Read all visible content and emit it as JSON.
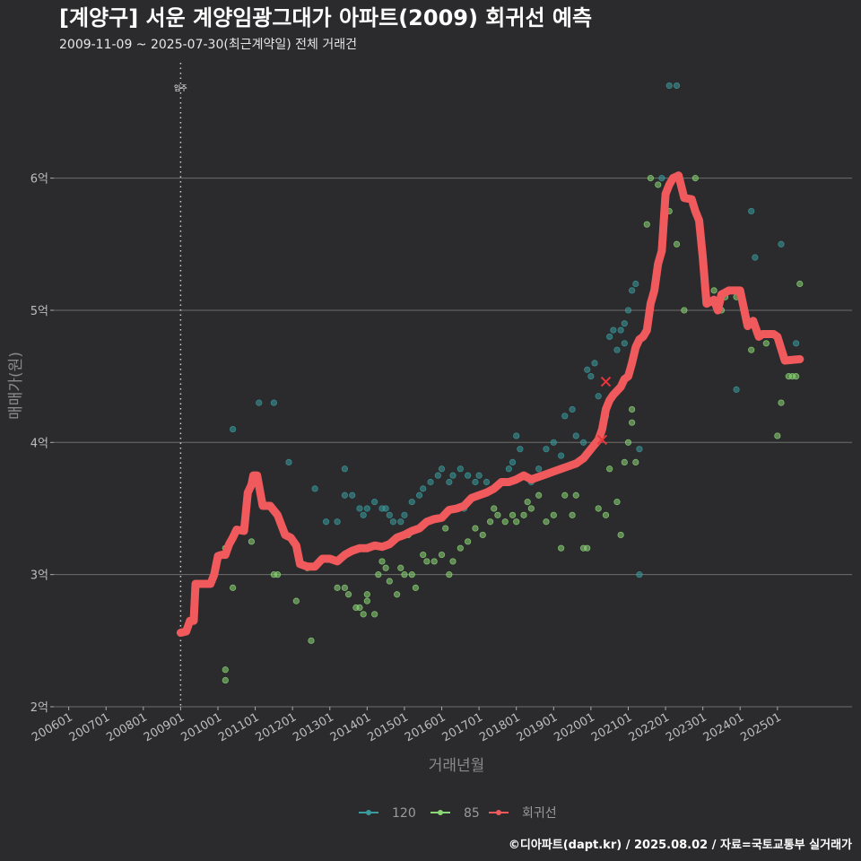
{
  "header": {
    "title": "[계양구] 서운 계양임광그대가 아파트(2009) 회귀선 예측",
    "subtitle": "2009-11-09 ~ 2025-07-30(최근계약일) 전체 거래건"
  },
  "caption": "©디아파트(dapt.kr) / 2025.08.02 / 자료=국토교통부 실거래가",
  "colors": {
    "s120": "#3a9a9c",
    "s85": "#8bd675",
    "reg": "#f05a5d",
    "grid": "#6e6e6e"
  },
  "chart_data": {
    "type": "scatter",
    "title": "[계양구] 서운 계양임광그대가 아파트(2009) 회귀선 예측",
    "xlabel": "거래년월",
    "ylabel": "매매가(원)",
    "xlim": [
      2005.6,
      2027.0
    ],
    "ylim": [
      2.0,
      6.9
    ],
    "x_ticks": [
      {
        "v": 2006.0,
        "label": "200601"
      },
      {
        "v": 2007.0,
        "label": "200701"
      },
      {
        "v": 2008.0,
        "label": "200801"
      },
      {
        "v": 2009.0,
        "label": "200901"
      },
      {
        "v": 2010.0,
        "label": "201001"
      },
      {
        "v": 2011.0,
        "label": "201101"
      },
      {
        "v": 2012.0,
        "label": "201201"
      },
      {
        "v": 2013.0,
        "label": "201301"
      },
      {
        "v": 2014.0,
        "label": "201401"
      },
      {
        "v": 2015.0,
        "label": "201501"
      },
      {
        "v": 2016.0,
        "label": "201601"
      },
      {
        "v": 2017.0,
        "label": "201701"
      },
      {
        "v": 2018.0,
        "label": "201801"
      },
      {
        "v": 2019.0,
        "label": "201901"
      },
      {
        "v": 2020.0,
        "label": "202001"
      },
      {
        "v": 2021.0,
        "label": "202101"
      },
      {
        "v": 2022.0,
        "label": "202201"
      },
      {
        "v": 2023.0,
        "label": "202301"
      },
      {
        "v": 2024.0,
        "label": "202401"
      },
      {
        "v": 2025.0,
        "label": "202501"
      }
    ],
    "y_ticks": [
      {
        "v": 2,
        "label": "2억"
      },
      {
        "v": 3,
        "label": "3억"
      },
      {
        "v": 4,
        "label": "4억"
      },
      {
        "v": 5,
        "label": "5억"
      },
      {
        "v": 6,
        "label": "6억"
      }
    ],
    "vline": {
      "x": 2009.0,
      "label": "입주"
    },
    "legend": [
      {
        "name": "120",
        "key": "s120"
      },
      {
        "name": "85",
        "key": "s85"
      },
      {
        "name": "회귀선",
        "key": "reg"
      }
    ],
    "series": [
      {
        "name": "120",
        "key": "s120",
        "points": [
          [
            2011.1,
            4.3
          ],
          [
            2011.5,
            4.3
          ],
          [
            2010.4,
            4.1
          ],
          [
            2011.9,
            3.85
          ],
          [
            2012.6,
            3.65
          ],
          [
            2013.4,
            3.8
          ],
          [
            2013.4,
            3.6
          ],
          [
            2013.6,
            3.6
          ],
          [
            2013.8,
            3.5
          ],
          [
            2013.9,
            3.45
          ],
          [
            2014.0,
            3.5
          ],
          [
            2014.2,
            3.55
          ],
          [
            2014.4,
            3.5
          ],
          [
            2014.5,
            3.5
          ],
          [
            2014.6,
            3.45
          ],
          [
            2014.7,
            3.4
          ],
          [
            2014.9,
            3.4
          ],
          [
            2015.0,
            3.45
          ],
          [
            2015.2,
            3.55
          ],
          [
            2015.4,
            3.6
          ],
          [
            2015.5,
            3.65
          ],
          [
            2015.7,
            3.7
          ],
          [
            2015.9,
            3.75
          ],
          [
            2016.0,
            3.8
          ],
          [
            2016.2,
            3.7
          ],
          [
            2016.3,
            3.75
          ],
          [
            2016.5,
            3.8
          ],
          [
            2016.7,
            3.75
          ],
          [
            2016.9,
            3.7
          ],
          [
            2017.0,
            3.75
          ],
          [
            2017.2,
            3.7
          ],
          [
            2017.4,
            3.65
          ],
          [
            2017.6,
            3.7
          ],
          [
            2017.8,
            3.8
          ],
          [
            2018.0,
            4.05
          ],
          [
            2018.2,
            3.75
          ],
          [
            2018.4,
            3.7
          ],
          [
            2018.6,
            3.8
          ],
          [
            2018.8,
            3.95
          ],
          [
            2019.0,
            4.0
          ],
          [
            2019.2,
            3.9
          ],
          [
            2019.3,
            4.2
          ],
          [
            2019.5,
            4.25
          ],
          [
            2019.6,
            4.05
          ],
          [
            2019.8,
            4.0
          ],
          [
            2020.0,
            4.5
          ],
          [
            2020.1,
            4.6
          ],
          [
            2020.2,
            4.35
          ],
          [
            2020.4,
            4.2
          ],
          [
            2020.5,
            4.8
          ],
          [
            2020.6,
            4.85
          ],
          [
            2020.8,
            4.85
          ],
          [
            2020.9,
            4.9
          ],
          [
            2021.0,
            5.0
          ],
          [
            2021.1,
            5.15
          ],
          [
            2021.2,
            5.2
          ],
          [
            2021.3,
            3.0
          ],
          [
            2021.3,
            3.95
          ],
          [
            2022.1,
            6.7
          ],
          [
            2022.3,
            6.7
          ],
          [
            2021.9,
            6.0
          ],
          [
            2023.9,
            4.4
          ],
          [
            2024.3,
            5.75
          ],
          [
            2024.4,
            5.4
          ],
          [
            2025.1,
            5.5
          ],
          [
            2025.5,
            4.75
          ],
          [
            2020.9,
            4.75
          ],
          [
            2019.9,
            4.55
          ],
          [
            2012.9,
            3.4
          ],
          [
            2013.2,
            3.4
          ],
          [
            2018.1,
            3.95
          ],
          [
            2017.9,
            3.85
          ],
          [
            2016.6,
            3.5
          ],
          [
            2020.7,
            4.7
          ]
        ]
      },
      {
        "name": "85",
        "key": "s85",
        "points": [
          [
            2010.2,
            2.28
          ],
          [
            2010.2,
            2.2
          ],
          [
            2010.2,
            3.2
          ],
          [
            2010.4,
            2.9
          ],
          [
            2010.9,
            3.25
          ],
          [
            2011.5,
            3.0
          ],
          [
            2011.6,
            3.0
          ],
          [
            2012.1,
            2.8
          ],
          [
            2012.5,
            2.5
          ],
          [
            2012.4,
            3.05
          ],
          [
            2013.2,
            2.9
          ],
          [
            2013.4,
            2.9
          ],
          [
            2013.5,
            2.85
          ],
          [
            2013.7,
            2.75
          ],
          [
            2013.8,
            2.75
          ],
          [
            2013.9,
            2.7
          ],
          [
            2014.0,
            2.85
          ],
          [
            2014.0,
            2.8
          ],
          [
            2014.2,
            2.7
          ],
          [
            2014.3,
            3.0
          ],
          [
            2014.5,
            3.05
          ],
          [
            2014.6,
            2.95
          ],
          [
            2014.8,
            2.85
          ],
          [
            2014.9,
            3.05
          ],
          [
            2015.0,
            3.0
          ],
          [
            2015.2,
            3.0
          ],
          [
            2015.3,
            2.9
          ],
          [
            2015.5,
            3.15
          ],
          [
            2015.6,
            3.1
          ],
          [
            2015.8,
            3.1
          ],
          [
            2016.0,
            3.15
          ],
          [
            2016.2,
            3.0
          ],
          [
            2016.3,
            3.1
          ],
          [
            2016.5,
            3.2
          ],
          [
            2016.7,
            3.25
          ],
          [
            2016.9,
            3.35
          ],
          [
            2017.1,
            3.3
          ],
          [
            2017.3,
            3.4
          ],
          [
            2017.5,
            3.45
          ],
          [
            2017.7,
            3.4
          ],
          [
            2017.9,
            3.45
          ],
          [
            2018.0,
            3.4
          ],
          [
            2018.2,
            3.45
          ],
          [
            2018.4,
            3.5
          ],
          [
            2018.6,
            3.6
          ],
          [
            2018.8,
            3.4
          ],
          [
            2019.0,
            3.45
          ],
          [
            2019.2,
            3.2
          ],
          [
            2019.3,
            3.6
          ],
          [
            2019.5,
            3.45
          ],
          [
            2019.6,
            3.6
          ],
          [
            2019.8,
            3.2
          ],
          [
            2019.9,
            3.2
          ],
          [
            2020.2,
            3.5
          ],
          [
            2020.4,
            3.45
          ],
          [
            2020.5,
            3.8
          ],
          [
            2020.7,
            3.55
          ],
          [
            2020.9,
            3.85
          ],
          [
            2021.0,
            4.0
          ],
          [
            2021.1,
            4.25
          ],
          [
            2021.1,
            4.15
          ],
          [
            2021.2,
            3.85
          ],
          [
            2020.8,
            3.3
          ],
          [
            2021.5,
            5.65
          ],
          [
            2021.6,
            6.0
          ],
          [
            2021.8,
            5.95
          ],
          [
            2022.1,
            5.75
          ],
          [
            2022.3,
            5.5
          ],
          [
            2022.5,
            5.0
          ],
          [
            2022.8,
            6.0
          ],
          [
            2023.3,
            5.15
          ],
          [
            2023.5,
            5.0
          ],
          [
            2023.6,
            5.1
          ],
          [
            2023.9,
            5.1
          ],
          [
            2024.3,
            4.7
          ],
          [
            2024.5,
            4.8
          ],
          [
            2024.7,
            4.75
          ],
          [
            2025.0,
            4.05
          ],
          [
            2025.1,
            4.3
          ],
          [
            2025.3,
            4.5
          ],
          [
            2025.4,
            4.5
          ],
          [
            2025.5,
            4.5
          ],
          [
            2025.6,
            5.2
          ],
          [
            2017.4,
            3.5
          ],
          [
            2018.3,
            3.55
          ],
          [
            2016.1,
            3.35
          ],
          [
            2014.4,
            3.1
          ],
          [
            2015.1,
            3.3
          ]
        ]
      },
      {
        "name": "회귀선",
        "key": "reg",
        "type": "line",
        "points": [
          [
            2009.0,
            2.56
          ],
          [
            2009.15,
            2.57
          ],
          [
            2009.25,
            2.65
          ],
          [
            2009.35,
            2.65
          ],
          [
            2009.4,
            2.93
          ],
          [
            2009.8,
            2.93
          ],
          [
            2009.9,
            3.0
          ],
          [
            2010.0,
            3.14
          ],
          [
            2010.1,
            3.15
          ],
          [
            2010.2,
            3.15
          ],
          [
            2010.3,
            3.23
          ],
          [
            2010.4,
            3.28
          ],
          [
            2010.5,
            3.34
          ],
          [
            2010.7,
            3.33
          ],
          [
            2010.8,
            3.62
          ],
          [
            2010.9,
            3.68
          ],
          [
            2010.95,
            3.75
          ],
          [
            2011.05,
            3.75
          ],
          [
            2011.2,
            3.52
          ],
          [
            2011.4,
            3.52
          ],
          [
            2011.6,
            3.45
          ],
          [
            2011.8,
            3.3
          ],
          [
            2011.95,
            3.28
          ],
          [
            2012.1,
            3.22
          ],
          [
            2012.2,
            3.08
          ],
          [
            2012.4,
            3.06
          ],
          [
            2012.6,
            3.06
          ],
          [
            2012.8,
            3.12
          ],
          [
            2013.0,
            3.12
          ],
          [
            2013.2,
            3.1
          ],
          [
            2013.4,
            3.15
          ],
          [
            2013.6,
            3.18
          ],
          [
            2013.8,
            3.2
          ],
          [
            2014.0,
            3.2
          ],
          [
            2014.2,
            3.22
          ],
          [
            2014.4,
            3.21
          ],
          [
            2014.6,
            3.23
          ],
          [
            2014.8,
            3.28
          ],
          [
            2015.0,
            3.3
          ],
          [
            2015.2,
            3.33
          ],
          [
            2015.4,
            3.35
          ],
          [
            2015.6,
            3.4
          ],
          [
            2015.8,
            3.42
          ],
          [
            2016.0,
            3.43
          ],
          [
            2016.2,
            3.49
          ],
          [
            2016.4,
            3.5
          ],
          [
            2016.6,
            3.52
          ],
          [
            2016.8,
            3.58
          ],
          [
            2017.0,
            3.6
          ],
          [
            2017.2,
            3.62
          ],
          [
            2017.4,
            3.65
          ],
          [
            2017.6,
            3.7
          ],
          [
            2017.8,
            3.7
          ],
          [
            2018.0,
            3.72
          ],
          [
            2018.2,
            3.75
          ],
          [
            2018.4,
            3.72
          ],
          [
            2018.6,
            3.74
          ],
          [
            2018.8,
            3.76
          ],
          [
            2019.0,
            3.78
          ],
          [
            2019.2,
            3.8
          ],
          [
            2019.4,
            3.82
          ],
          [
            2019.6,
            3.84
          ],
          [
            2019.8,
            3.88
          ],
          [
            2020.0,
            3.95
          ],
          [
            2020.2,
            4.02
          ],
          [
            2020.3,
            4.1
          ],
          [
            2020.4,
            4.25
          ],
          [
            2020.5,
            4.32
          ],
          [
            2020.6,
            4.36
          ],
          [
            2020.8,
            4.42
          ],
          [
            2020.9,
            4.48
          ],
          [
            2021.0,
            4.5
          ],
          [
            2021.1,
            4.6
          ],
          [
            2021.2,
            4.72
          ],
          [
            2021.3,
            4.78
          ],
          [
            2021.4,
            4.8
          ],
          [
            2021.5,
            4.85
          ],
          [
            2021.6,
            5.05
          ],
          [
            2021.7,
            5.15
          ],
          [
            2021.8,
            5.35
          ],
          [
            2021.9,
            5.45
          ],
          [
            2022.0,
            5.88
          ],
          [
            2022.1,
            5.95
          ],
          [
            2022.2,
            6.0
          ],
          [
            2022.35,
            6.02
          ],
          [
            2022.5,
            5.85
          ],
          [
            2022.7,
            5.84
          ],
          [
            2022.8,
            5.75
          ],
          [
            2022.9,
            5.68
          ],
          [
            2023.0,
            5.4
          ],
          [
            2023.1,
            5.05
          ],
          [
            2023.3,
            5.08
          ],
          [
            2023.4,
            5.0
          ],
          [
            2023.5,
            5.12
          ],
          [
            2023.7,
            5.15
          ],
          [
            2024.0,
            5.15
          ],
          [
            2024.2,
            4.88
          ],
          [
            2024.35,
            4.92
          ],
          [
            2024.5,
            4.8
          ],
          [
            2024.6,
            4.82
          ],
          [
            2024.9,
            4.82
          ],
          [
            2025.0,
            4.8
          ],
          [
            2025.2,
            4.62
          ],
          [
            2025.6,
            4.63
          ]
        ]
      }
    ],
    "markers_x": [
      [
        2020.4,
        4.46
      ],
      [
        2020.3,
        4.02
      ]
    ]
  }
}
